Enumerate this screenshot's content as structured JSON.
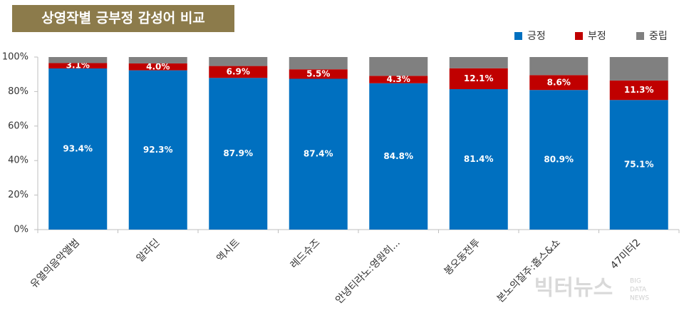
{
  "chart_data": {
    "type": "stacked_bar",
    "title": "상영작별 긍부정 감성어 비교",
    "categories": [
      "유열의음악앨범",
      "알라딘",
      "엑시트",
      "레드슈즈",
      "안녕티라노:영원히...",
      "봉오동전투",
      "본노의질주:홉스&쇼",
      "47미터2"
    ],
    "series": [
      {
        "name": "긍정",
        "color": "#0070c0",
        "values": [
          93.4,
          92.3,
          87.9,
          87.4,
          84.8,
          81.4,
          80.9,
          75.1
        ],
        "value_labels": [
          "93.4%",
          "92.3%",
          "87.9%",
          "87.4%",
          "84.8%",
          "81.4%",
          "80.9%",
          "75.1%"
        ]
      },
      {
        "name": "부정",
        "color": "#c00000",
        "values": [
          3.1,
          4.0,
          6.9,
          5.5,
          4.3,
          12.1,
          8.6,
          11.3
        ],
        "value_labels": [
          "3.1%",
          "4.0%",
          "6.9%",
          "5.5%",
          "4.3%",
          "12.1%",
          "8.6%",
          "11.3%"
        ]
      },
      {
        "name": "중립",
        "color": "#808080",
        "values": [
          3.5,
          3.7,
          5.2,
          7.1,
          10.9,
          6.5,
          10.5,
          13.6
        ]
      }
    ],
    "ylim": [
      0,
      100
    ],
    "yticks": [
      {
        "value": 0,
        "label": "0%"
      },
      {
        "value": 20,
        "label": "20%"
      },
      {
        "value": 40,
        "label": "40%"
      },
      {
        "value": 60,
        "label": "60%"
      },
      {
        "value": 80,
        "label": "80%"
      },
      {
        "value": 100,
        "label": "100%"
      }
    ],
    "legend": "top-right",
    "watermark": {
      "main": "빅터뉴스",
      "sub": [
        "BIG",
        "DATA",
        "NEWS"
      ]
    }
  }
}
